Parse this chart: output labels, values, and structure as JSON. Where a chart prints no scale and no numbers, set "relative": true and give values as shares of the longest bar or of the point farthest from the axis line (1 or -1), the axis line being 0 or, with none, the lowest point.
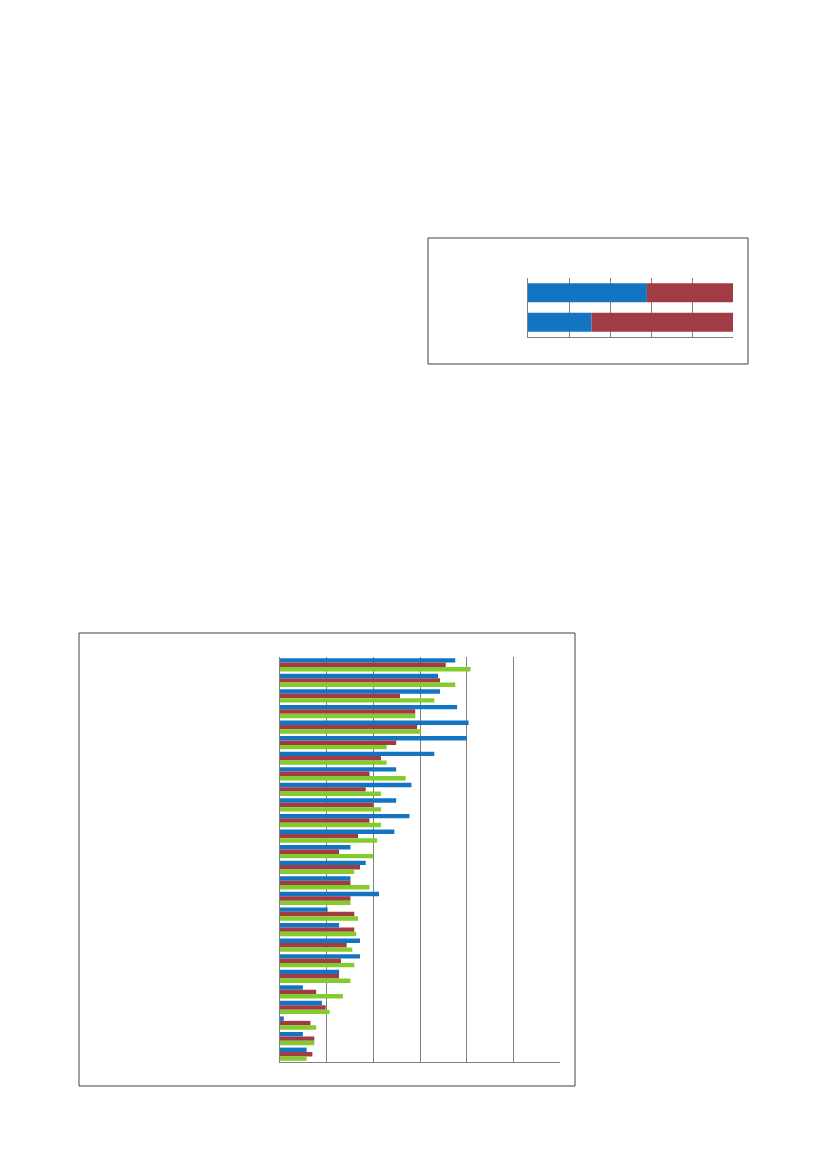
{
  "chart_data": [
    {
      "type": "bar",
      "orientation": "horizontal",
      "stacked": true,
      "relative": true,
      "grid": "x",
      "categories": [
        null,
        null
      ],
      "series": [
        {
          "color": "#1375c2",
          "values": [
            0.58,
            0.31
          ]
        },
        {
          "color": "#a23c44",
          "values": [
            0.42,
            0.69
          ]
        }
      ]
    },
    {
      "type": "bar",
      "orientation": "horizontal",
      "relative": true,
      "grid": "x",
      "categories": [
        null,
        null,
        null,
        null,
        null,
        null,
        null,
        null,
        null,
        null,
        null,
        null,
        null,
        null,
        null,
        null,
        null,
        null,
        null,
        null,
        null,
        null,
        null,
        null,
        null,
        null
      ],
      "series": [
        {
          "color": "#1375c2",
          "values": [
            0.92,
            0.83,
            0.84,
            0.93,
            0.99,
            0.98,
            0.81,
            0.61,
            0.69,
            0.61,
            0.68,
            0.6,
            0.37,
            0.45,
            0.37,
            0.52,
            0.25,
            0.31,
            0.42,
            0.42,
            0.31,
            0.12,
            0.22,
            0.02,
            0.12,
            0.14
          ]
        },
        {
          "color": "#a23c44",
          "values": [
            0.87,
            0.84,
            0.63,
            0.71,
            0.72,
            0.61,
            0.53,
            0.47,
            0.45,
            0.49,
            0.47,
            0.41,
            0.31,
            0.42,
            0.37,
            0.37,
            0.39,
            0.39,
            0.35,
            0.32,
            0.31,
            0.19,
            0.24,
            0.16,
            0.18,
            0.17
          ]
        },
        {
          "color": "#84cc2c",
          "values": [
            1,
            0.92,
            0.81,
            0.71,
            0.74,
            0.56,
            0.56,
            0.66,
            0.53,
            0.53,
            0.53,
            0.51,
            0.49,
            0.39,
            0.47,
            0.37,
            0.41,
            0.4,
            0.38,
            0.39,
            0.37,
            0.33,
            0.26,
            0.19,
            0.18,
            0.14
          ]
        }
      ]
    }
  ]
}
